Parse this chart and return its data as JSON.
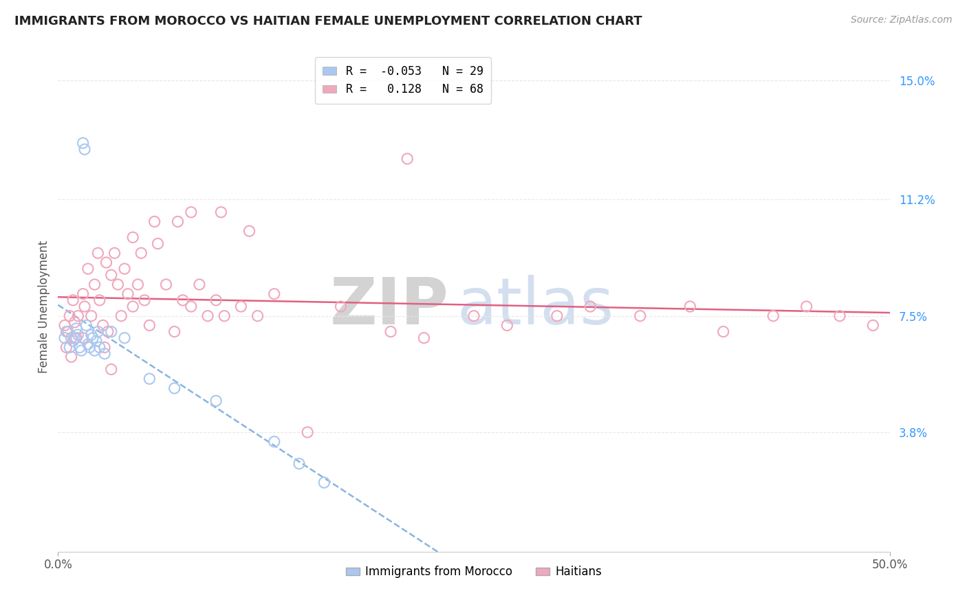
{
  "title": "IMMIGRANTS FROM MOROCCO VS HAITIAN FEMALE UNEMPLOYMENT CORRELATION CHART",
  "source_text": "Source: ZipAtlas.com",
  "ylabel": "Female Unemployment",
  "xlim": [
    0.0,
    50.0
  ],
  "ylim": [
    0.0,
    15.6
  ],
  "yticks": [
    3.8,
    7.5,
    11.2,
    15.0
  ],
  "ytick_labels": [
    "3.8%",
    "7.5%",
    "11.2%",
    "15.0%"
  ],
  "morocco_R": -0.053,
  "morocco_N": 29,
  "haiti_R": 0.128,
  "haiti_N": 68,
  "morocco_color": "#aac8f0",
  "haiti_color": "#f0a8bc",
  "morocco_line_color": "#88b4e0",
  "haiti_line_color": "#e06080",
  "background_color": "#ffffff",
  "grid_color": "#e8e8e8",
  "watermark_zip": "ZIP",
  "watermark_atlas": "atlas",
  "watermark_color": "#c8d8ec",
  "morocco_x": [
    0.4,
    0.5,
    0.7,
    0.9,
    1.0,
    1.1,
    1.2,
    1.3,
    1.4,
    1.5,
    1.6,
    1.7,
    1.8,
    1.9,
    2.0,
    2.1,
    2.2,
    2.3,
    2.4,
    2.5,
    2.8,
    3.2,
    4.0,
    5.5,
    7.0,
    9.5,
    13.0,
    14.5,
    16.0
  ],
  "morocco_y": [
    6.8,
    7.0,
    6.5,
    6.7,
    6.8,
    7.1,
    6.9,
    6.5,
    6.4,
    13.0,
    12.8,
    7.2,
    6.6,
    6.5,
    6.9,
    6.8,
    6.4,
    6.7,
    7.0,
    6.5,
    6.3,
    7.0,
    6.8,
    5.5,
    5.2,
    4.8,
    3.5,
    2.8,
    2.2
  ],
  "haiti_x": [
    0.4,
    0.5,
    0.6,
    0.7,
    0.8,
    0.9,
    1.0,
    1.1,
    1.2,
    1.5,
    1.6,
    1.8,
    2.0,
    2.2,
    2.4,
    2.5,
    2.7,
    2.9,
    3.0,
    3.2,
    3.4,
    3.6,
    3.8,
    4.0,
    4.2,
    4.5,
    4.8,
    5.0,
    5.2,
    5.5,
    6.0,
    6.5,
    7.0,
    7.5,
    8.0,
    8.5,
    9.0,
    9.5,
    10.0,
    11.0,
    12.0,
    13.0,
    15.0,
    17.0,
    20.0,
    22.0,
    25.0,
    27.0,
    30.0,
    32.0,
    35.0,
    38.0,
    40.0,
    43.0,
    45.0,
    47.0,
    49.0,
    21.0,
    8.0,
    5.8,
    4.5,
    7.2,
    9.8,
    11.5,
    3.2,
    2.8,
    1.5,
    0.8
  ],
  "haiti_y": [
    7.2,
    6.5,
    7.0,
    7.5,
    6.8,
    8.0,
    7.3,
    6.8,
    7.5,
    8.2,
    7.8,
    9.0,
    7.5,
    8.5,
    9.5,
    8.0,
    7.2,
    9.2,
    7.0,
    8.8,
    9.5,
    8.5,
    7.5,
    9.0,
    8.2,
    7.8,
    8.5,
    9.5,
    8.0,
    7.2,
    9.8,
    8.5,
    7.0,
    8.0,
    7.8,
    8.5,
    7.5,
    8.0,
    7.5,
    7.8,
    7.5,
    8.2,
    3.8,
    7.8,
    7.0,
    6.8,
    7.5,
    7.2,
    7.5,
    7.8,
    7.5,
    7.8,
    7.0,
    7.5,
    7.8,
    7.5,
    7.2,
    12.5,
    10.8,
    10.5,
    10.0,
    10.5,
    10.8,
    10.2,
    5.8,
    6.5,
    6.8,
    6.2
  ]
}
